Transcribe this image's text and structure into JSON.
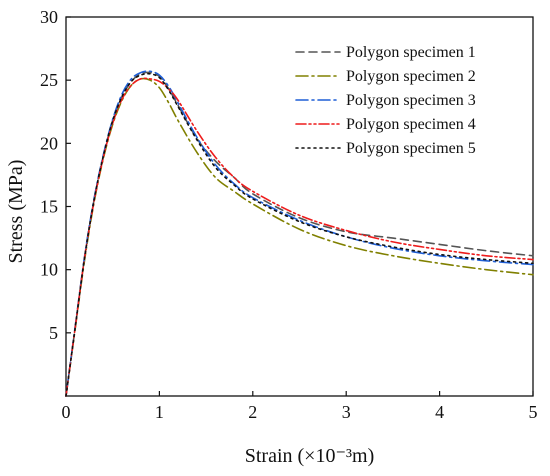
{
  "chart_data": {
    "type": "line",
    "title": "",
    "xlabel": "Strain (×10⁻³m)",
    "ylabel": "Stress (MPa)",
    "xlim": [
      0,
      5
    ],
    "ylim": [
      0,
      30
    ],
    "xticks": [
      0,
      1,
      2,
      3,
      4,
      5
    ],
    "yticks": [
      5,
      10,
      15,
      20,
      25,
      30
    ],
    "x_tick_labels": [
      "0",
      "1",
      "2",
      "3",
      "4",
      "5"
    ],
    "y_tick_labels": [
      "5",
      "10",
      "15",
      "20",
      "25",
      "30"
    ],
    "grid": false,
    "legend_position": "top-right",
    "series": [
      {
        "name": "Polygon specimen 1",
        "color": "#555555",
        "dash": "dashed",
        "x": [
          0,
          0.1,
          0.2,
          0.3,
          0.4,
          0.5,
          0.6,
          0.7,
          0.8,
          0.9,
          1.0,
          1.1,
          1.2,
          1.4,
          1.6,
          1.8,
          2.0,
          2.5,
          3.0,
          3.5,
          4.0,
          4.5,
          5.0
        ],
        "y": [
          0,
          5.5,
          11.0,
          15.5,
          19.0,
          21.8,
          23.7,
          24.9,
          25.5,
          25.6,
          25.3,
          24.3,
          23.0,
          20.4,
          18.6,
          17.3,
          16.0,
          14.1,
          13.0,
          12.5,
          12.0,
          11.5,
          11.1
        ]
      },
      {
        "name": "Polygon specimen 2",
        "color": "#808000",
        "dash": "dashdot",
        "x": [
          0,
          0.1,
          0.2,
          0.3,
          0.4,
          0.5,
          0.6,
          0.7,
          0.8,
          0.9,
          1.0,
          1.1,
          1.2,
          1.4,
          1.6,
          1.8,
          2.0,
          2.5,
          3.0,
          3.5,
          4.0,
          4.5,
          5.0
        ],
        "y": [
          0,
          5.4,
          10.8,
          15.3,
          18.8,
          21.5,
          23.4,
          24.6,
          25.1,
          25.0,
          24.4,
          23.2,
          21.8,
          19.3,
          17.3,
          16.2,
          15.2,
          13.2,
          11.9,
          11.1,
          10.5,
          10.0,
          9.6
        ]
      },
      {
        "name": "Polygon specimen 3",
        "color": "#1f5fd6",
        "dash": "dashdot",
        "x": [
          0,
          0.1,
          0.2,
          0.3,
          0.4,
          0.5,
          0.6,
          0.7,
          0.8,
          0.9,
          1.0,
          1.1,
          1.2,
          1.4,
          1.6,
          1.8,
          2.0,
          2.5,
          3.0,
          3.5,
          4.0,
          4.5,
          5.0
        ],
        "y": [
          0,
          5.6,
          11.1,
          15.6,
          19.1,
          21.9,
          23.9,
          25.1,
          25.6,
          25.7,
          25.4,
          24.5,
          23.2,
          20.5,
          18.3,
          16.8,
          15.7,
          13.9,
          12.6,
          11.7,
          11.1,
          10.7,
          10.4
        ]
      },
      {
        "name": "Polygon specimen 4",
        "color": "#ee1c1c",
        "dash": "dashdotdot",
        "x": [
          0,
          0.1,
          0.2,
          0.3,
          0.4,
          0.5,
          0.6,
          0.7,
          0.8,
          0.9,
          1.0,
          1.1,
          1.2,
          1.4,
          1.6,
          1.8,
          2.0,
          2.5,
          3.0,
          3.5,
          4.0,
          4.5,
          5.0
        ],
        "y": [
          0,
          5.5,
          11.0,
          15.4,
          18.9,
          21.6,
          23.5,
          24.6,
          25.1,
          25.1,
          24.9,
          24.3,
          23.4,
          21.0,
          18.9,
          17.3,
          16.2,
          14.3,
          13.1,
          12.2,
          11.6,
          11.1,
          10.8
        ]
      },
      {
        "name": "Polygon specimen 5",
        "color": "#111111",
        "dash": "dotted",
        "x": [
          0,
          0.1,
          0.2,
          0.3,
          0.4,
          0.5,
          0.6,
          0.7,
          0.8,
          0.9,
          1.0,
          1.1,
          1.2,
          1.4,
          1.6,
          1.8,
          2.0,
          2.5,
          3.0,
          3.5,
          4.0,
          4.5,
          5.0
        ],
        "y": [
          0,
          5.5,
          11.0,
          15.5,
          19.0,
          21.8,
          23.7,
          24.9,
          25.4,
          25.5,
          25.2,
          24.2,
          22.9,
          20.3,
          18.1,
          16.7,
          15.6,
          13.8,
          12.6,
          11.8,
          11.2,
          10.8,
          10.5
        ]
      }
    ]
  }
}
